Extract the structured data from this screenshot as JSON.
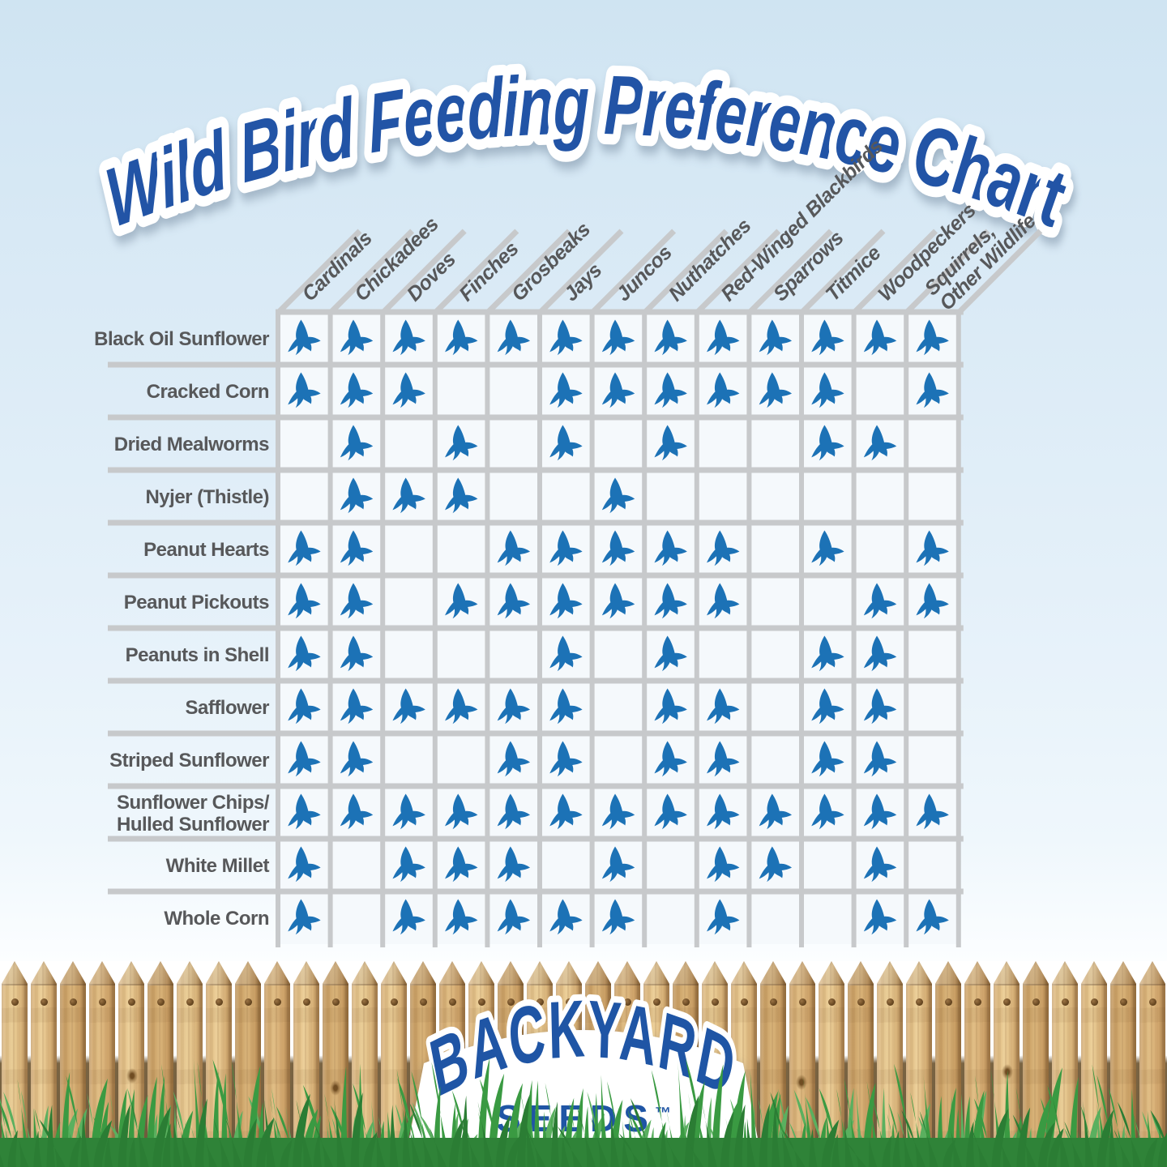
{
  "title": "Wild Bird Feeding Preference Chart",
  "chart_data": {
    "type": "table",
    "title": "Wild Bird Feeding Preference Chart",
    "mark": "bird-silhouette",
    "mark_meaning": "bird/animal eats this food",
    "columns": [
      "Cardinals",
      "Chickadees",
      "Doves",
      "Finches",
      "Grosbeaks",
      "Jays",
      "Juncos",
      "Nuthatches",
      "Red-Winged Blackbirds",
      "Sparrows",
      "Titmice",
      "Woodpeckers",
      "Squirrels,\nOther Wildlife"
    ],
    "rows": [
      "Black Oil Sunflower",
      "Cracked Corn",
      "Dried Mealworms",
      "Nyjer (Thistle)",
      "Peanut Hearts",
      "Peanut Pickouts",
      "Peanuts in Shell",
      "Safflower",
      "Striped Sunflower",
      "Sunflower Chips/\nHulled Sunflower",
      "White Millet",
      "Whole Corn"
    ],
    "matrix": [
      [
        1,
        1,
        1,
        1,
        1,
        1,
        1,
        1,
        1,
        1,
        1,
        1,
        1
      ],
      [
        1,
        1,
        1,
        0,
        0,
        1,
        1,
        1,
        1,
        1,
        1,
        0,
        1
      ],
      [
        0,
        1,
        0,
        1,
        0,
        1,
        0,
        1,
        0,
        0,
        1,
        1,
        0
      ],
      [
        0,
        1,
        1,
        1,
        0,
        0,
        1,
        0,
        0,
        0,
        0,
        0,
        0
      ],
      [
        1,
        1,
        0,
        0,
        1,
        1,
        1,
        1,
        1,
        0,
        1,
        0,
        1
      ],
      [
        1,
        1,
        0,
        1,
        1,
        1,
        1,
        1,
        1,
        0,
        0,
        1,
        1
      ],
      [
        1,
        1,
        0,
        0,
        0,
        1,
        0,
        1,
        0,
        0,
        1,
        1,
        0
      ],
      [
        1,
        1,
        1,
        1,
        1,
        1,
        0,
        1,
        1,
        0,
        1,
        1,
        0
      ],
      [
        1,
        1,
        0,
        0,
        1,
        1,
        0,
        1,
        1,
        0,
        1,
        1,
        0
      ],
      [
        1,
        1,
        1,
        1,
        1,
        1,
        1,
        1,
        1,
        1,
        1,
        1,
        1
      ],
      [
        1,
        0,
        1,
        1,
        1,
        0,
        1,
        0,
        1,
        1,
        0,
        1,
        0
      ],
      [
        1,
        0,
        1,
        1,
        1,
        1,
        1,
        0,
        1,
        0,
        0,
        1,
        1
      ]
    ]
  },
  "logo": {
    "name": "BACKYARD",
    "sub": "SEEDS",
    "tm": "™"
  },
  "colors": {
    "title_blue": "#2254a6",
    "logo_blue": "#1f55a5",
    "bird_blue": "#1c72b6",
    "label_gray": "#57585a",
    "grid_gray": "#c7c9cb",
    "cell_bg": "#f5f9fc",
    "grass_light": "#5ab05f",
    "grass_mid": "#3a9a42",
    "grass_dark": "#2b7d34",
    "grass_base": "#2f8338"
  }
}
